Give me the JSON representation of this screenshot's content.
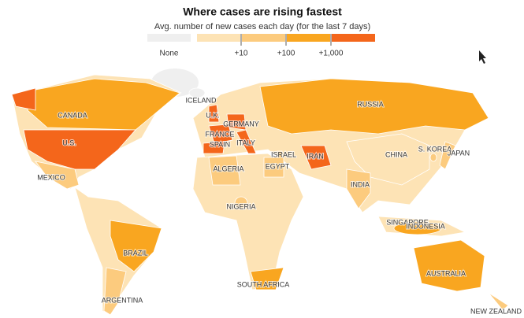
{
  "header": {
    "title": "Where cases are rising fastest",
    "subtitle": "Avg. number of new cases each day (for the last 7 days)"
  },
  "legend": {
    "colors": [
      "#efefef",
      "#fde3b5",
      "#fccb7e",
      "#f9a620",
      "#f4661b"
    ],
    "labels": [
      "None",
      "+10",
      "+100",
      "+1,000"
    ]
  },
  "countries": [
    {
      "label": "CANADA",
      "color": "#f9a620"
    },
    {
      "label": "U.S.",
      "color": "#f4661b"
    },
    {
      "label": "MEXICO",
      "color": "#fccb7e"
    },
    {
      "label": "BRAZIL",
      "color": "#f9a620"
    },
    {
      "label": "ARGENTINA",
      "color": "#fccb7e"
    },
    {
      "label": "ICELAND",
      "color": "#efefef"
    },
    {
      "label": "U.K.",
      "color": "#f4661b"
    },
    {
      "label": "GERMANY",
      "color": "#f4661b"
    },
    {
      "label": "FRANCE",
      "color": "#f4661b"
    },
    {
      "label": "SPAIN",
      "color": "#f4661b"
    },
    {
      "label": "ITALY",
      "color": "#f4661b"
    },
    {
      "label": "RUSSIA",
      "color": "#f9a620"
    },
    {
      "label": "CHINA",
      "color": "#fde3b5"
    },
    {
      "label": "S. KOREA",
      "color": "#fccb7e"
    },
    {
      "label": "JAPAN",
      "color": "#fccb7e"
    },
    {
      "label": "ISRAEL",
      "color": "#f9a620"
    },
    {
      "label": "IRAN",
      "color": "#f4661b"
    },
    {
      "label": "EGYPT",
      "color": "#fccb7e"
    },
    {
      "label": "ALGERIA",
      "color": "#fccb7e"
    },
    {
      "label": "NIGERIA",
      "color": "#fccb7e"
    },
    {
      "label": "INDIA",
      "color": "#fccb7e"
    },
    {
      "label": "SINGAPORE",
      "color": "#f9a620"
    },
    {
      "label": "INDONESIA",
      "color": "#f9a620"
    },
    {
      "label": "SOUTH AFRICA",
      "color": "#f9a620"
    },
    {
      "label": "AUSTRALIA",
      "color": "#f9a620"
    },
    {
      "label": "NEW ZEALAND",
      "color": "#fccb7e"
    }
  ]
}
